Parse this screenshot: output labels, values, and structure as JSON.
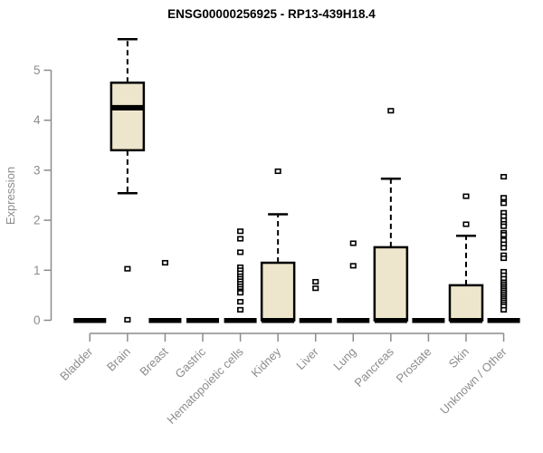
{
  "title": "ENSG00000256925 - RP13-439H18.4",
  "colors": {
    "box_fill": "#EDE6CC",
    "box_stroke": "#000000",
    "median": "#000000",
    "outlier_fill": "#FFFFFF",
    "axis": "#8C8C8C",
    "tick_text": "#8C8C8C",
    "title_text": "#000000",
    "background": "#FFFFFF"
  },
  "chart_data": {
    "type": "boxplot",
    "title": "ENSG00000256925 - RP13-439H18.4",
    "xlabel": "",
    "ylabel": "Expression",
    "ylim": [
      0,
      5
    ],
    "yticks": [
      0,
      1,
      2,
      3,
      4,
      5
    ],
    "grid": false,
    "legend": "none",
    "categories": [
      "Bladder",
      "Brain",
      "Breast",
      "Gastric",
      "Hematopoietic cells",
      "Kidney",
      "Liver",
      "Lung",
      "Pancreas",
      "Prostate",
      "Skin",
      "Unknown / Other"
    ],
    "boxes": [
      {
        "category": "Bladder",
        "min": 0,
        "q1": 0,
        "median": 0,
        "q3": 0,
        "max": 0,
        "outliers": []
      },
      {
        "category": "Brain",
        "min": 2.54,
        "q1": 3.4,
        "median": 4.25,
        "q3": 4.75,
        "max": 5.62,
        "outliers": [
          1.03,
          0.01
        ]
      },
      {
        "category": "Breast",
        "min": 0,
        "q1": 0,
        "median": 0,
        "q3": 0,
        "max": 0,
        "outliers": [
          1.15
        ]
      },
      {
        "category": "Gastric",
        "min": 0,
        "q1": 0,
        "median": 0,
        "q3": 0,
        "max": 0,
        "outliers": []
      },
      {
        "category": "Hematopoietic cells",
        "min": 0,
        "q1": 0,
        "median": 0,
        "q3": 0,
        "max": 0,
        "outliers": [
          1.78,
          1.63,
          1.36,
          1.06,
          1.0,
          0.94,
          0.88,
          0.83,
          0.78,
          0.73,
          0.68,
          0.63,
          0.58,
          0.55,
          0.37,
          0.21
        ]
      },
      {
        "category": "Kidney",
        "min": 0,
        "q1": 0,
        "median": 0,
        "q3": 1.15,
        "max": 2.12,
        "outliers": [
          2.98
        ]
      },
      {
        "category": "Liver",
        "min": 0,
        "q1": 0,
        "median": 0,
        "q3": 0,
        "max": 0,
        "outliers": [
          0.77,
          0.64
        ]
      },
      {
        "category": "Lung",
        "min": 0,
        "q1": 0,
        "median": 0,
        "q3": 0,
        "max": 0,
        "outliers": [
          1.54,
          1.09
        ]
      },
      {
        "category": "Pancreas",
        "min": 0,
        "q1": 0,
        "median": 0,
        "q3": 1.46,
        "max": 2.83,
        "outliers": [
          4.19
        ]
      },
      {
        "category": "Prostate",
        "min": 0,
        "q1": 0,
        "median": 0,
        "q3": 0,
        "max": 0,
        "outliers": []
      },
      {
        "category": "Skin",
        "min": 0,
        "q1": 0,
        "median": 0,
        "q3": 0.7,
        "max": 1.69,
        "outliers": [
          1.92,
          2.48
        ]
      },
      {
        "category": "Unknown / Other",
        "min": 0,
        "q1": 0,
        "median": 0,
        "q3": 0,
        "max": 0,
        "outliers": [
          2.87,
          2.45,
          2.34,
          2.15,
          2.08,
          2.0,
          1.93,
          1.88,
          1.75,
          1.71,
          1.6,
          1.52,
          1.45,
          1.3,
          1.24,
          0.97,
          0.9,
          0.83,
          0.76,
          0.72,
          0.68,
          0.64,
          0.6,
          0.56,
          0.52,
          0.48,
          0.44,
          0.4,
          0.36,
          0.32,
          0.28,
          0.21
        ]
      }
    ]
  }
}
